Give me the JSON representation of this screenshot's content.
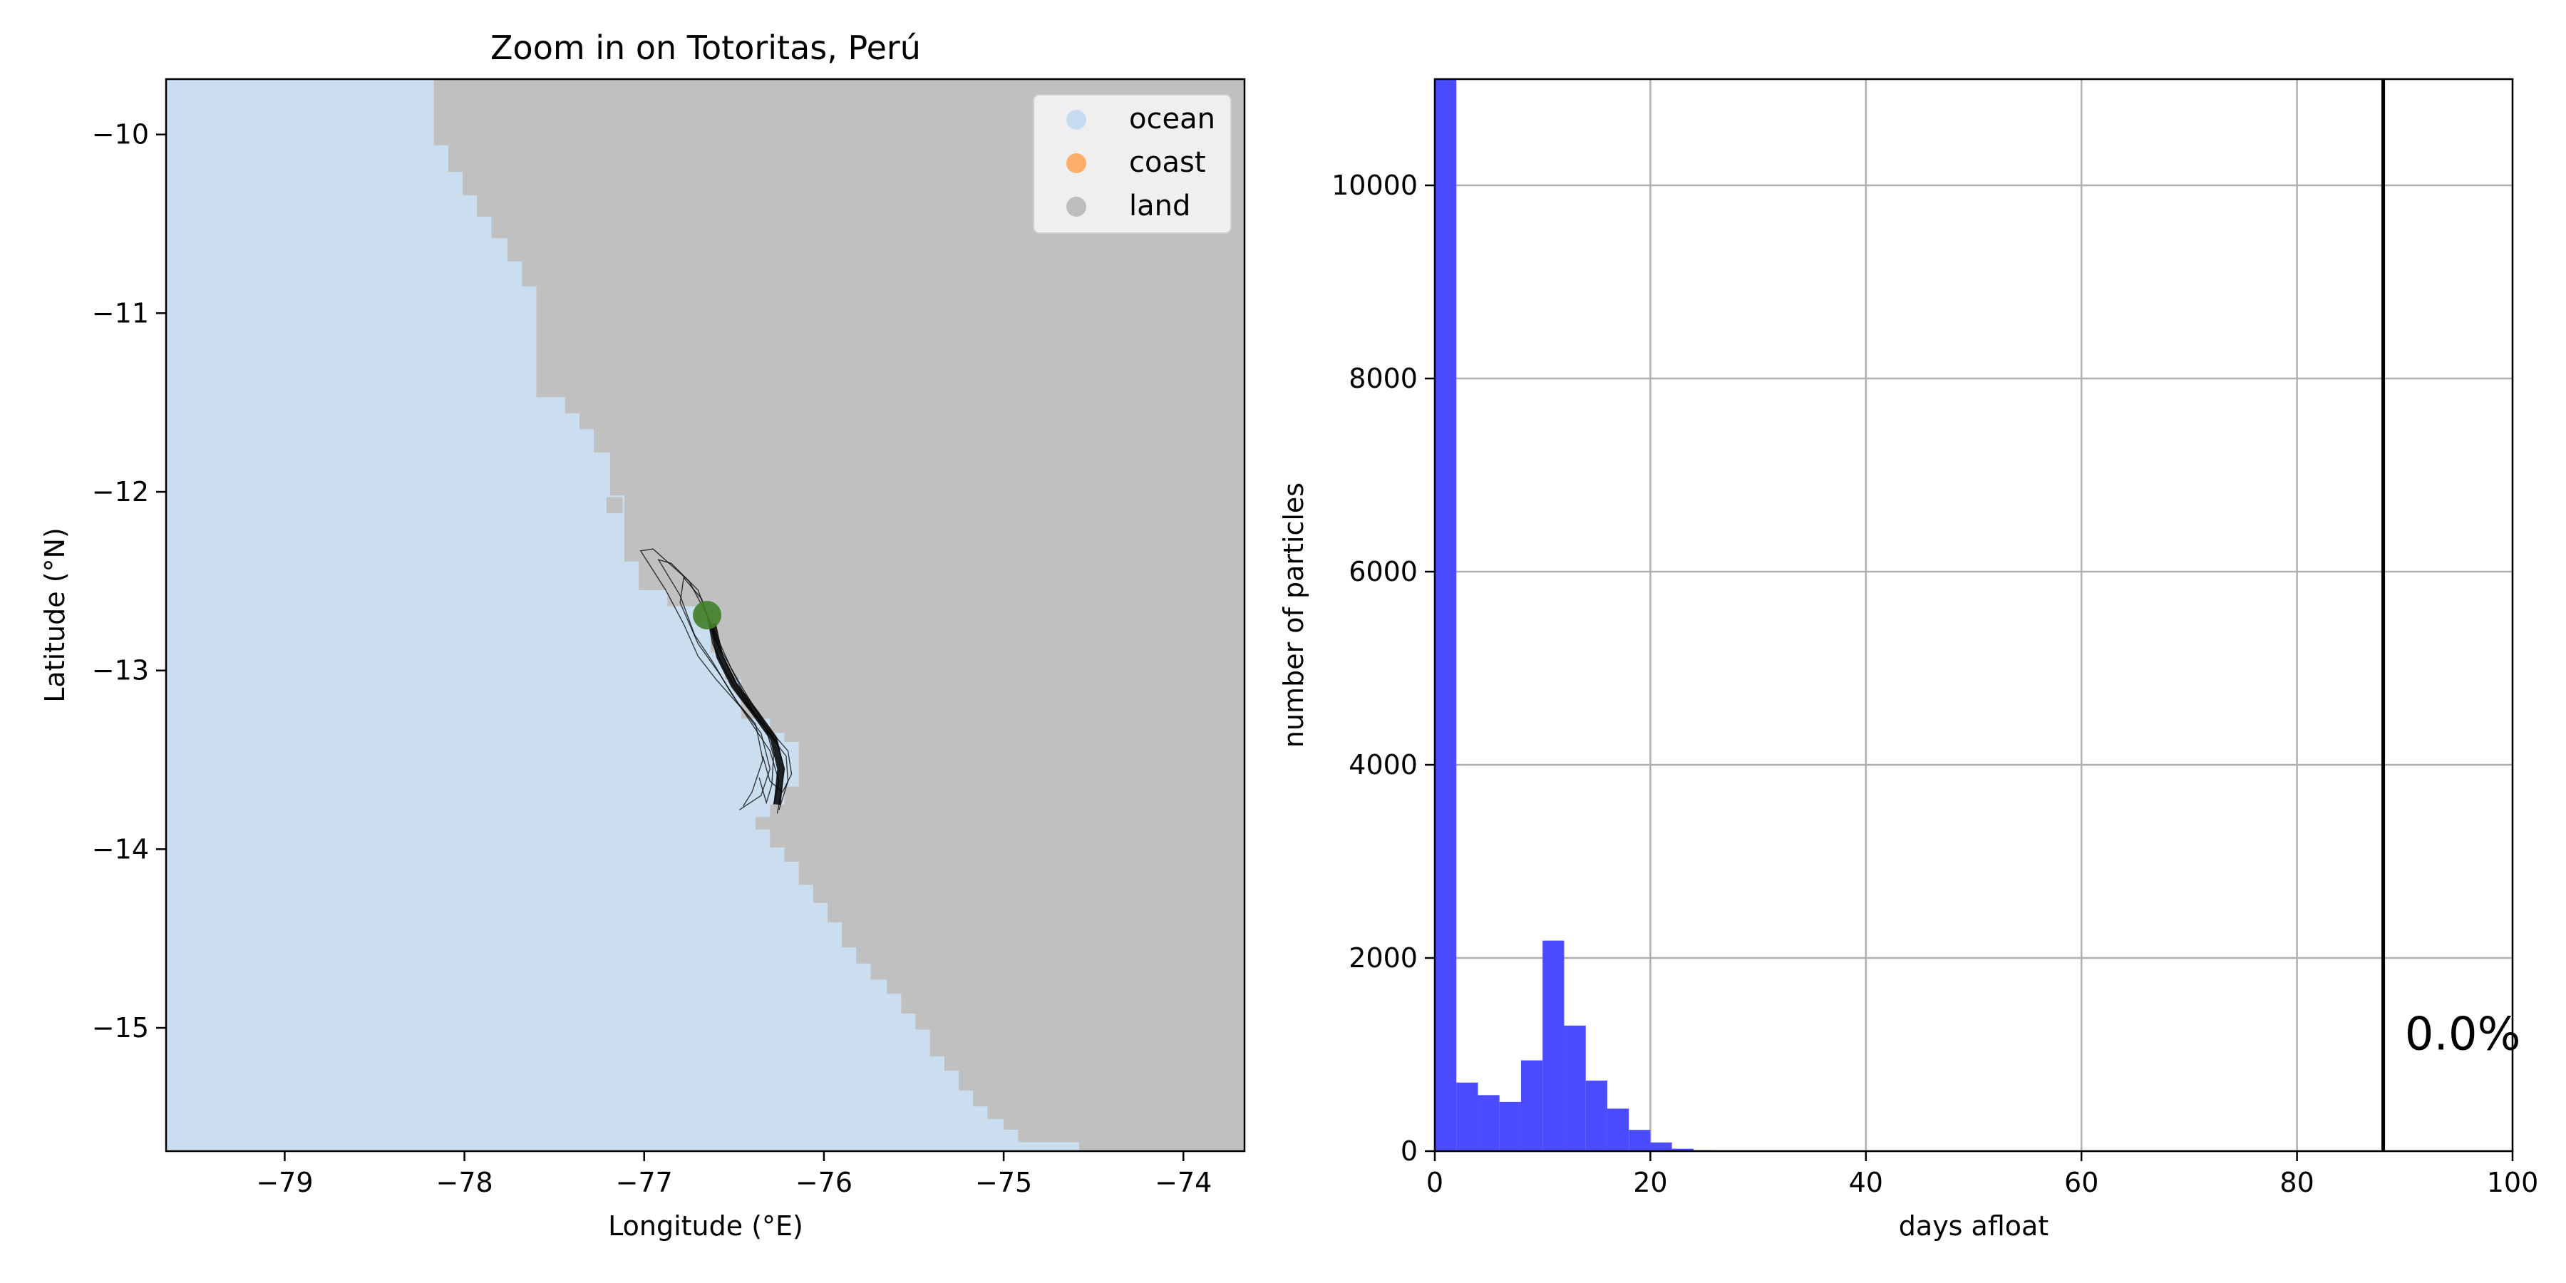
{
  "chart_data": [
    {
      "type": "map",
      "title": "Zoom in on Totoritas, Perú",
      "xlabel": "Longitude (°E)",
      "ylabel": "Latitude (°N)",
      "xlim": [
        -79.66,
        -73.66
      ],
      "ylim": [
        -15.69,
        -9.69
      ],
      "xticks": [
        -79,
        -78,
        -77,
        -76,
        -75,
        -74
      ],
      "yticks": [
        -10,
        -11,
        -12,
        -13,
        -14,
        -15
      ],
      "xtick_labels": [
        "−79",
        "−78",
        "−77",
        "−76",
        "−75",
        "−74"
      ],
      "ytick_labels": [
        "−10",
        "−11",
        "−12",
        "−13",
        "−14",
        "−15"
      ],
      "legend": {
        "position": "top-right",
        "entries": [
          {
            "label": "ocean",
            "color": "#c6dbef"
          },
          {
            "label": "coast",
            "color": "#fdae6b"
          },
          {
            "label": "land",
            "color": "#bdbdbd"
          }
        ]
      },
      "colors": {
        "ocean": "#cadef0",
        "land": "#c0c0c0",
        "marker": "#3f7f2a",
        "tracks": "#000000"
      },
      "coastline": {
        "description": "land/ocean boundary as lon,lat pairs from north to south",
        "points": [
          [
            -78.25,
            -9.69
          ],
          [
            -78.17,
            -9.69
          ],
          [
            -78.17,
            -10.06
          ],
          [
            -78.09,
            -10.06
          ],
          [
            -78.09,
            -10.21
          ],
          [
            -78.01,
            -10.21
          ],
          [
            -78.01,
            -10.34
          ],
          [
            -77.93,
            -10.34
          ],
          [
            -77.93,
            -10.46
          ],
          [
            -77.85,
            -10.46
          ],
          [
            -77.85,
            -10.58
          ],
          [
            -77.76,
            -10.58
          ],
          [
            -77.76,
            -10.71
          ],
          [
            -77.68,
            -10.71
          ],
          [
            -77.68,
            -10.85
          ],
          [
            -77.6,
            -10.85
          ],
          [
            -77.6,
            -11.47
          ],
          [
            -77.44,
            -11.47
          ],
          [
            -77.44,
            -11.56
          ],
          [
            -77.36,
            -11.56
          ],
          [
            -77.36,
            -11.65
          ],
          [
            -77.28,
            -11.65
          ],
          [
            -77.28,
            -11.78
          ],
          [
            -77.19,
            -11.78
          ],
          [
            -77.19,
            -12.02
          ],
          [
            -77.11,
            -12.02
          ],
          [
            -77.11,
            -12.39
          ],
          [
            -77.03,
            -12.39
          ],
          [
            -77.03,
            -12.55
          ],
          [
            -76.87,
            -12.55
          ],
          [
            -76.87,
            -12.64
          ],
          [
            -76.71,
            -12.64
          ],
          [
            -76.71,
            -12.73
          ],
          [
            -76.63,
            -12.73
          ],
          [
            -76.63,
            -12.9
          ],
          [
            -76.55,
            -12.9
          ],
          [
            -76.55,
            -13.05
          ],
          [
            -76.46,
            -13.05
          ],
          [
            -76.46,
            -13.27
          ],
          [
            -76.3,
            -13.27
          ],
          [
            -76.3,
            -13.35
          ],
          [
            -76.22,
            -13.35
          ],
          [
            -76.22,
            -13.4
          ],
          [
            -76.14,
            -13.4
          ],
          [
            -76.14,
            -13.65
          ],
          [
            -76.22,
            -13.65
          ],
          [
            -76.22,
            -13.75
          ],
          [
            -76.3,
            -13.75
          ],
          [
            -76.3,
            -13.82
          ],
          [
            -76.38,
            -13.82
          ],
          [
            -76.38,
            -13.89
          ],
          [
            -76.3,
            -13.89
          ],
          [
            -76.3,
            -13.99
          ],
          [
            -76.22,
            -13.99
          ],
          [
            -76.22,
            -14.07
          ],
          [
            -76.14,
            -14.07
          ],
          [
            -76.14,
            -14.2
          ],
          [
            -76.06,
            -14.2
          ],
          [
            -76.06,
            -14.3
          ],
          [
            -75.98,
            -14.3
          ],
          [
            -75.98,
            -14.41
          ],
          [
            -75.9,
            -14.41
          ],
          [
            -75.9,
            -14.55
          ],
          [
            -75.82,
            -14.55
          ],
          [
            -75.82,
            -14.64
          ],
          [
            -75.74,
            -14.64
          ],
          [
            -75.74,
            -14.73
          ],
          [
            -75.65,
            -14.73
          ],
          [
            -75.65,
            -14.81
          ],
          [
            -75.57,
            -14.81
          ],
          [
            -75.57,
            -14.92
          ],
          [
            -75.49,
            -14.92
          ],
          [
            -75.49,
            -15.01
          ],
          [
            -75.41,
            -15.01
          ],
          [
            -75.41,
            -15.16
          ],
          [
            -75.33,
            -15.16
          ],
          [
            -75.33,
            -15.24
          ],
          [
            -75.25,
            -15.24
          ],
          [
            -75.25,
            -15.35
          ],
          [
            -75.17,
            -15.35
          ],
          [
            -75.17,
            -15.44
          ],
          [
            -75.09,
            -15.44
          ],
          [
            -75.09,
            -15.51
          ],
          [
            -75.0,
            -15.51
          ],
          [
            -75.0,
            -15.57
          ],
          [
            -74.92,
            -15.57
          ],
          [
            -74.92,
            -15.64
          ],
          [
            -74.58,
            -15.64
          ],
          [
            -74.58,
            -15.69
          ]
        ],
        "islands": [
          [
            -77.21,
            -12.03,
            -77.12,
            -12.12
          ]
        ]
      },
      "release_site": {
        "lon": -76.65,
        "lat": -12.69
      },
      "tracks": [
        [
          [
            -76.65,
            -12.69
          ],
          [
            -76.75,
            -12.5
          ],
          [
            -76.95,
            -12.32
          ],
          [
            -77.02,
            -12.33
          ],
          [
            -76.88,
            -12.55
          ],
          [
            -76.78,
            -12.74
          ],
          [
            -76.7,
            -12.92
          ],
          [
            -76.6,
            -13.05
          ],
          [
            -76.45,
            -13.22
          ],
          [
            -76.35,
            -13.35
          ],
          [
            -76.3,
            -13.55
          ],
          [
            -76.35,
            -13.7
          ],
          [
            -76.47,
            -13.78
          ]
        ],
        [
          [
            -76.65,
            -12.69
          ],
          [
            -76.7,
            -12.55
          ],
          [
            -76.85,
            -12.4
          ],
          [
            -76.92,
            -12.38
          ],
          [
            -76.8,
            -12.58
          ],
          [
            -76.72,
            -12.8
          ],
          [
            -76.62,
            -12.95
          ],
          [
            -76.52,
            -13.12
          ],
          [
            -76.4,
            -13.3
          ],
          [
            -76.3,
            -13.45
          ],
          [
            -76.25,
            -13.62
          ],
          [
            -76.28,
            -13.75
          ]
        ],
        [
          [
            -76.65,
            -12.69
          ],
          [
            -76.62,
            -12.85
          ],
          [
            -76.55,
            -13.0
          ],
          [
            -76.46,
            -13.15
          ],
          [
            -76.36,
            -13.28
          ],
          [
            -76.26,
            -13.4
          ],
          [
            -76.22,
            -13.55
          ],
          [
            -76.24,
            -13.7
          ],
          [
            -76.26,
            -13.8
          ]
        ],
        [
          [
            -76.65,
            -12.69
          ],
          [
            -76.6,
            -12.8
          ],
          [
            -76.52,
            -12.98
          ],
          [
            -76.44,
            -13.12
          ],
          [
            -76.33,
            -13.3
          ],
          [
            -76.2,
            -13.45
          ],
          [
            -76.18,
            -13.58
          ],
          [
            -76.23,
            -13.68
          ],
          [
            -76.3,
            -13.62
          ],
          [
            -76.34,
            -13.48
          ]
        ],
        [
          [
            -76.65,
            -12.69
          ],
          [
            -76.58,
            -12.88
          ],
          [
            -76.5,
            -13.05
          ],
          [
            -76.42,
            -13.2
          ],
          [
            -76.32,
            -13.33
          ],
          [
            -76.28,
            -13.48
          ],
          [
            -76.29,
            -13.64
          ],
          [
            -76.32,
            -13.74
          ],
          [
            -76.36,
            -13.6
          ]
        ],
        [
          [
            -76.65,
            -12.69
          ],
          [
            -76.68,
            -12.6
          ],
          [
            -76.78,
            -12.48
          ],
          [
            -76.8,
            -12.62
          ],
          [
            -76.7,
            -12.85
          ],
          [
            -76.58,
            -13.02
          ],
          [
            -76.48,
            -13.18
          ],
          [
            -76.38,
            -13.3
          ],
          [
            -76.34,
            -13.5
          ],
          [
            -76.4,
            -13.68
          ],
          [
            -76.45,
            -13.76
          ]
        ],
        [
          [
            -76.65,
            -12.69
          ],
          [
            -76.61,
            -12.82
          ],
          [
            -76.53,
            -12.96
          ],
          [
            -76.47,
            -13.08
          ],
          [
            -76.4,
            -13.22
          ],
          [
            -76.3,
            -13.36
          ],
          [
            -76.21,
            -13.48
          ],
          [
            -76.2,
            -13.62
          ],
          [
            -76.25,
            -13.78
          ]
        ]
      ]
    },
    {
      "type": "bar",
      "title": "",
      "xlabel": "days afloat",
      "ylabel": "number of particles",
      "xlim": [
        0,
        100
      ],
      "ylim": [
        0,
        11100
      ],
      "xticks": [
        0,
        20,
        40,
        60,
        80,
        100
      ],
      "yticks": [
        0,
        2000,
        4000,
        6000,
        8000,
        10000
      ],
      "grid": true,
      "bar_color": "#4b4bff",
      "bin_width": 2,
      "bins": [
        {
          "x": 0,
          "count": 11100
        },
        {
          "x": 2,
          "count": 710
        },
        {
          "x": 4,
          "count": 580
        },
        {
          "x": 6,
          "count": 510
        },
        {
          "x": 8,
          "count": 940
        },
        {
          "x": 10,
          "count": 2180
        },
        {
          "x": 12,
          "count": 1300
        },
        {
          "x": 14,
          "count": 730
        },
        {
          "x": 16,
          "count": 440
        },
        {
          "x": 18,
          "count": 220
        },
        {
          "x": 20,
          "count": 90
        },
        {
          "x": 22,
          "count": 25
        },
        {
          "x": 24,
          "count": 10
        },
        {
          "x": 26,
          "count": 3
        }
      ],
      "vline": {
        "x": 88,
        "color": "#000000"
      },
      "annotation": {
        "text": "0.0%",
        "x": 90,
        "y": 1050
      }
    }
  ]
}
